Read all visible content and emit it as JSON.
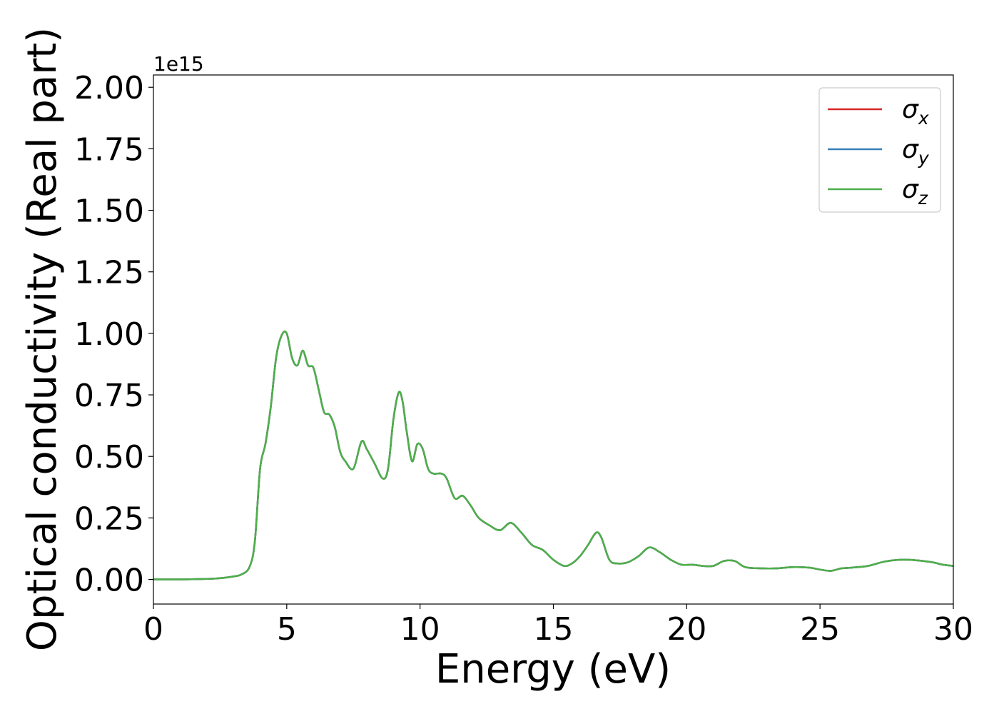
{
  "chart_data": {
    "type": "line",
    "xlabel": "Energy (eV)",
    "ylabel": "Optical conductivity (Real part)",
    "y_offset_label": "1e15",
    "xlim": [
      0,
      30
    ],
    "ylim": [
      -0.1,
      2.05
    ],
    "x_ticks": [
      0,
      5,
      10,
      15,
      20,
      25,
      30
    ],
    "x_tick_labels": [
      "0",
      "5",
      "10",
      "15",
      "20",
      "25",
      "30"
    ],
    "y_ticks": [
      0.0,
      0.25,
      0.5,
      0.75,
      1.0,
      1.25,
      1.5,
      1.75,
      2.0
    ],
    "y_tick_labels": [
      "0.00",
      "0.25",
      "0.50",
      "0.75",
      "1.00",
      "1.25",
      "1.50",
      "1.75",
      "2.00"
    ],
    "grid": false,
    "legend_position": "top-right",
    "legend": [
      {
        "symbol": "σ",
        "subscript": "x",
        "color": "#d62728"
      },
      {
        "symbol": "σ",
        "subscript": "y",
        "color": "#377eb8"
      },
      {
        "symbol": "σ",
        "subscript": "z",
        "color": "#4daf4a"
      }
    ],
    "series": [
      {
        "name": "σx",
        "color": "#d62728",
        "x": [
          0,
          1,
          2,
          2.5,
          3,
          3.3,
          3.6,
          3.8,
          4.0,
          4.2,
          4.4,
          4.6,
          4.8,
          5.0,
          5.2,
          5.4,
          5.6,
          5.8,
          6.0,
          6.2,
          6.4,
          6.6,
          6.8,
          7.0,
          7.2,
          7.5,
          7.8,
          8.0,
          8.3,
          8.6,
          8.8,
          9.0,
          9.2,
          9.35,
          9.5,
          9.7,
          9.9,
          10.1,
          10.3,
          10.5,
          10.8,
          11.0,
          11.3,
          11.6,
          11.9,
          12.2,
          12.6,
          13.0,
          13.4,
          13.8,
          14.2,
          14.6,
          15.0,
          15.4,
          15.7,
          16.0,
          16.3,
          16.6,
          16.8,
          17.1,
          17.4,
          17.8,
          18.2,
          18.6,
          19.0,
          19.4,
          19.8,
          20.2,
          20.6,
          21.0,
          21.4,
          21.8,
          22.2,
          22.8,
          23.4,
          24.0,
          24.6,
          25.0,
          25.4,
          25.8,
          26.2,
          26.8,
          27.4,
          28.0,
          28.6,
          29.2,
          29.6,
          30.0
        ],
        "y": [
          0.0,
          0.0,
          0.002,
          0.005,
          0.012,
          0.02,
          0.05,
          0.15,
          0.45,
          0.55,
          0.7,
          0.9,
          0.99,
          1.0,
          0.9,
          0.87,
          0.93,
          0.87,
          0.86,
          0.77,
          0.68,
          0.67,
          0.62,
          0.52,
          0.48,
          0.45,
          0.56,
          0.53,
          0.47,
          0.41,
          0.45,
          0.65,
          0.76,
          0.72,
          0.6,
          0.48,
          0.55,
          0.53,
          0.45,
          0.43,
          0.43,
          0.41,
          0.33,
          0.34,
          0.3,
          0.25,
          0.22,
          0.2,
          0.23,
          0.19,
          0.14,
          0.12,
          0.08,
          0.055,
          0.065,
          0.095,
          0.14,
          0.19,
          0.17,
          0.08,
          0.065,
          0.07,
          0.095,
          0.13,
          0.11,
          0.08,
          0.06,
          0.06,
          0.055,
          0.055,
          0.075,
          0.075,
          0.05,
          0.045,
          0.045,
          0.05,
          0.048,
          0.04,
          0.035,
          0.045,
          0.048,
          0.055,
          0.072,
          0.08,
          0.078,
          0.07,
          0.06,
          0.055
        ]
      },
      {
        "name": "σy",
        "color": "#377eb8",
        "x": [
          0,
          1,
          2,
          2.5,
          3,
          3.3,
          3.6,
          3.8,
          4.0,
          4.2,
          4.4,
          4.6,
          4.8,
          5.0,
          5.2,
          5.4,
          5.6,
          5.8,
          6.0,
          6.2,
          6.4,
          6.6,
          6.8,
          7.0,
          7.2,
          7.5,
          7.8,
          8.0,
          8.3,
          8.6,
          8.8,
          9.0,
          9.2,
          9.35,
          9.5,
          9.7,
          9.9,
          10.1,
          10.3,
          10.5,
          10.8,
          11.0,
          11.3,
          11.6,
          11.9,
          12.2,
          12.6,
          13.0,
          13.4,
          13.8,
          14.2,
          14.6,
          15.0,
          15.4,
          15.7,
          16.0,
          16.3,
          16.6,
          16.8,
          17.1,
          17.4,
          17.8,
          18.2,
          18.6,
          19.0,
          19.4,
          19.8,
          20.2,
          20.6,
          21.0,
          21.4,
          21.8,
          22.2,
          22.8,
          23.4,
          24.0,
          24.6,
          25.0,
          25.4,
          25.8,
          26.2,
          26.8,
          27.4,
          28.0,
          28.6,
          29.2,
          29.6,
          30.0
        ],
        "y": [
          0.0,
          0.0,
          0.002,
          0.005,
          0.012,
          0.02,
          0.05,
          0.15,
          0.45,
          0.55,
          0.7,
          0.9,
          0.99,
          1.0,
          0.9,
          0.87,
          0.93,
          0.87,
          0.86,
          0.77,
          0.68,
          0.67,
          0.62,
          0.52,
          0.48,
          0.45,
          0.56,
          0.53,
          0.47,
          0.41,
          0.45,
          0.65,
          0.76,
          0.72,
          0.6,
          0.48,
          0.55,
          0.53,
          0.45,
          0.43,
          0.43,
          0.41,
          0.33,
          0.34,
          0.3,
          0.25,
          0.22,
          0.2,
          0.23,
          0.19,
          0.14,
          0.12,
          0.08,
          0.055,
          0.065,
          0.095,
          0.14,
          0.19,
          0.17,
          0.08,
          0.065,
          0.07,
          0.095,
          0.13,
          0.11,
          0.08,
          0.06,
          0.06,
          0.055,
          0.055,
          0.075,
          0.075,
          0.05,
          0.045,
          0.045,
          0.05,
          0.048,
          0.04,
          0.035,
          0.045,
          0.048,
          0.055,
          0.072,
          0.08,
          0.078,
          0.07,
          0.06,
          0.055
        ]
      },
      {
        "name": "σz",
        "color": "#4daf4a",
        "x": [
          0,
          1,
          2,
          2.5,
          3,
          3.3,
          3.6,
          3.8,
          4.0,
          4.2,
          4.4,
          4.6,
          4.8,
          5.0,
          5.2,
          5.4,
          5.6,
          5.8,
          6.0,
          6.2,
          6.4,
          6.6,
          6.8,
          7.0,
          7.2,
          7.5,
          7.8,
          8.0,
          8.3,
          8.6,
          8.8,
          9.0,
          9.2,
          9.35,
          9.5,
          9.7,
          9.9,
          10.1,
          10.3,
          10.5,
          10.8,
          11.0,
          11.3,
          11.6,
          11.9,
          12.2,
          12.6,
          13.0,
          13.4,
          13.8,
          14.2,
          14.6,
          15.0,
          15.4,
          15.7,
          16.0,
          16.3,
          16.6,
          16.8,
          17.1,
          17.4,
          17.8,
          18.2,
          18.6,
          19.0,
          19.4,
          19.8,
          20.2,
          20.6,
          21.0,
          21.4,
          21.8,
          22.2,
          22.8,
          23.4,
          24.0,
          24.6,
          25.0,
          25.4,
          25.8,
          26.2,
          26.8,
          27.4,
          28.0,
          28.6,
          29.2,
          29.6,
          30.0
        ],
        "y": [
          0.0,
          0.0,
          0.002,
          0.005,
          0.012,
          0.02,
          0.05,
          0.15,
          0.45,
          0.55,
          0.7,
          0.9,
          0.99,
          1.0,
          0.9,
          0.87,
          0.93,
          0.87,
          0.86,
          0.77,
          0.68,
          0.67,
          0.62,
          0.52,
          0.48,
          0.45,
          0.56,
          0.53,
          0.47,
          0.41,
          0.45,
          0.65,
          0.76,
          0.72,
          0.6,
          0.48,
          0.55,
          0.53,
          0.45,
          0.43,
          0.43,
          0.41,
          0.33,
          0.34,
          0.3,
          0.25,
          0.22,
          0.2,
          0.23,
          0.19,
          0.14,
          0.12,
          0.08,
          0.055,
          0.065,
          0.095,
          0.14,
          0.19,
          0.17,
          0.08,
          0.065,
          0.07,
          0.095,
          0.13,
          0.11,
          0.08,
          0.06,
          0.06,
          0.055,
          0.055,
          0.075,
          0.075,
          0.05,
          0.045,
          0.045,
          0.05,
          0.048,
          0.04,
          0.035,
          0.045,
          0.048,
          0.055,
          0.072,
          0.08,
          0.078,
          0.07,
          0.06,
          0.055
        ]
      }
    ]
  }
}
